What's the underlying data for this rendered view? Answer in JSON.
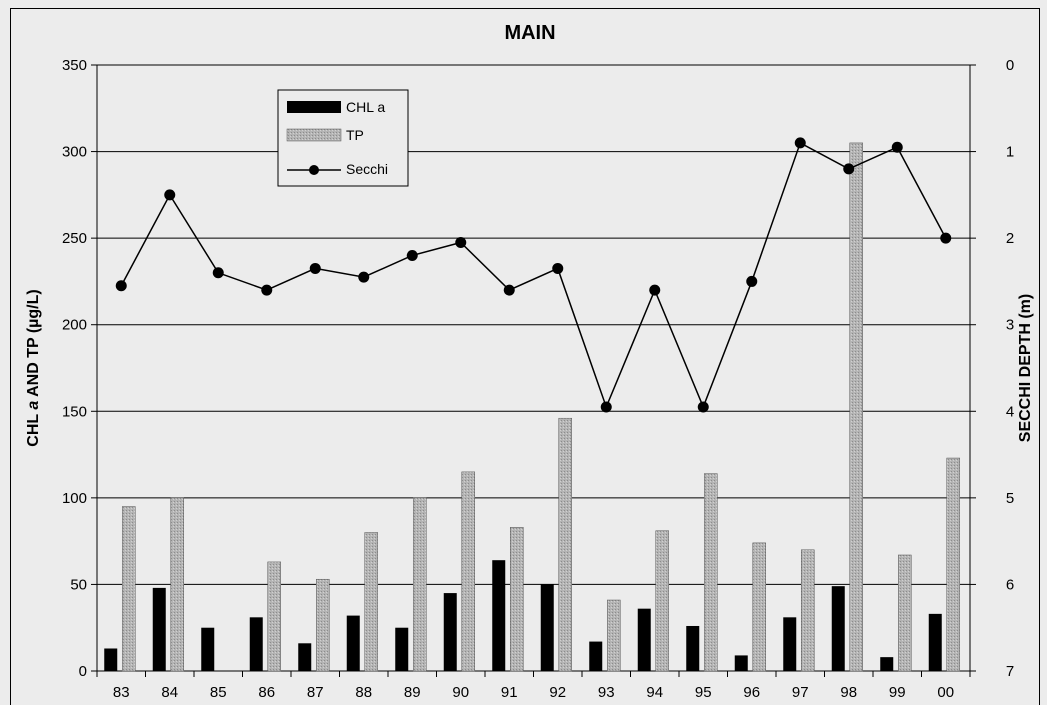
{
  "chart_data": {
    "type": "bar",
    "title": "MAIN",
    "categories": [
      "83",
      "84",
      "85",
      "86",
      "87",
      "88",
      "89",
      "90",
      "91",
      "92",
      "93",
      "94",
      "95",
      "96",
      "97",
      "98",
      "99",
      "00"
    ],
    "series": [
      {
        "name": "CHL a",
        "type": "bar",
        "axis": "left",
        "color": "#000000",
        "values": [
          13,
          48,
          25,
          31,
          16,
          32,
          25,
          45,
          64,
          50,
          17,
          36,
          26,
          9,
          31,
          49,
          8,
          33
        ]
      },
      {
        "name": "TP",
        "type": "bar",
        "axis": "left",
        "color": "#a8a8a8",
        "values": [
          95,
          100,
          null,
          63,
          53,
          80,
          100,
          115,
          83,
          146,
          41,
          81,
          114,
          74,
          70,
          305,
          67,
          123
        ]
      },
      {
        "name": "Secchi",
        "type": "line",
        "axis": "right",
        "color": "#000000",
        "values": [
          2.55,
          1.5,
          2.4,
          2.6,
          2.35,
          2.45,
          2.2,
          2.05,
          2.6,
          2.35,
          3.95,
          2.6,
          3.95,
          2.5,
          0.9,
          1.2,
          0.95,
          2.0
        ]
      }
    ],
    "ylabel": "CHL a AND TP (µg/L)",
    "ylabel_prefix": "CHL ",
    "ylabel_italic": "a",
    "ylabel_suffix": " AND TP (µg/L)",
    "y2label": "SECCHI DEPTH (m)",
    "ylim": [
      0,
      350
    ],
    "y2lim": [
      7,
      0
    ],
    "yticks": [
      "0",
      "50",
      "100",
      "150",
      "200",
      "250",
      "300",
      "350"
    ],
    "y2ticks": [
      "0",
      "1",
      "2",
      "3",
      "4",
      "5",
      "6",
      "7"
    ],
    "grid": true,
    "legend_position": "top-left",
    "legend": [
      {
        "label": "CHL a",
        "swatch": "bar-black"
      },
      {
        "label": "TP",
        "swatch": "bar-gray"
      },
      {
        "label": "Secchi",
        "swatch": "line-marker"
      }
    ]
  }
}
